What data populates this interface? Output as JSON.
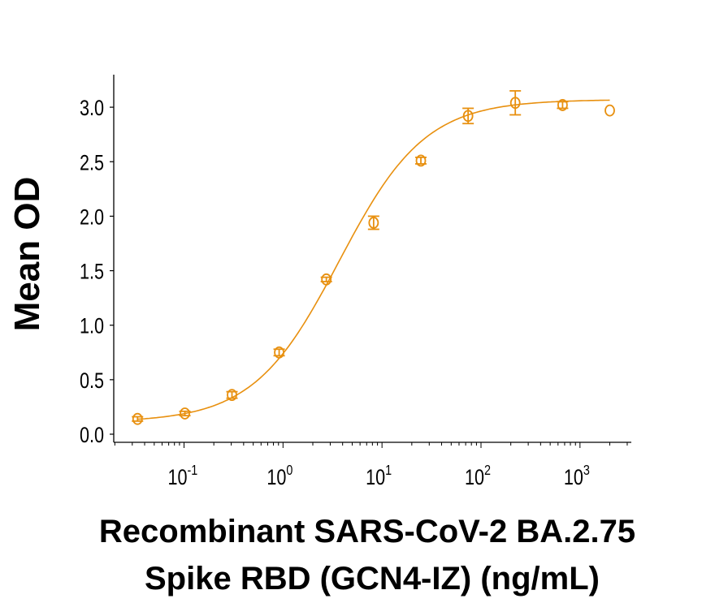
{
  "chart_data": {
    "type": "scatter",
    "title": "",
    "xlabel_line1": "Recombinant SARS-CoV-2 BA.2.75",
    "xlabel_line2": "Spike RBD (GCN4-IZ) (ng/mL)",
    "ylabel": "Mean OD",
    "x_scale": "log",
    "xlim": [
      0.0195,
      3300
    ],
    "ylim": [
      0,
      3.3
    ],
    "x_ticks": [
      {
        "base": "10",
        "exp": "-1",
        "value": 0.1
      },
      {
        "base": "10",
        "exp": "0",
        "value": 1
      },
      {
        "base": "10",
        "exp": "1",
        "value": 10
      },
      {
        "base": "10",
        "exp": "2",
        "value": 100
      },
      {
        "base": "10",
        "exp": "3",
        "value": 1000
      }
    ],
    "y_ticks": [
      "0.0",
      "0.5",
      "1.0",
      "1.5",
      "2.0",
      "2.5",
      "3.0"
    ],
    "grid": false,
    "legend": "none",
    "color": "#E8900F",
    "series": [
      {
        "x": [
          0.0339,
          0.102,
          0.305,
          0.914,
          2.74,
          8.23,
          24.7,
          74.1,
          222,
          667,
          2000
        ],
        "y": [
          0.14,
          0.19,
          0.36,
          0.75,
          1.42,
          1.94,
          2.51,
          2.92,
          3.04,
          3.02,
          2.97
        ],
        "error": [
          0.02,
          0.02,
          0.03,
          0.03,
          0.02,
          0.06,
          0.03,
          0.07,
          0.11,
          0.03,
          0.0
        ]
      }
    ],
    "fit": {
      "model": "4PL",
      "bottom": 0.11,
      "top": 3.07,
      "ec50": 3.7,
      "hill": 1.0
    }
  }
}
